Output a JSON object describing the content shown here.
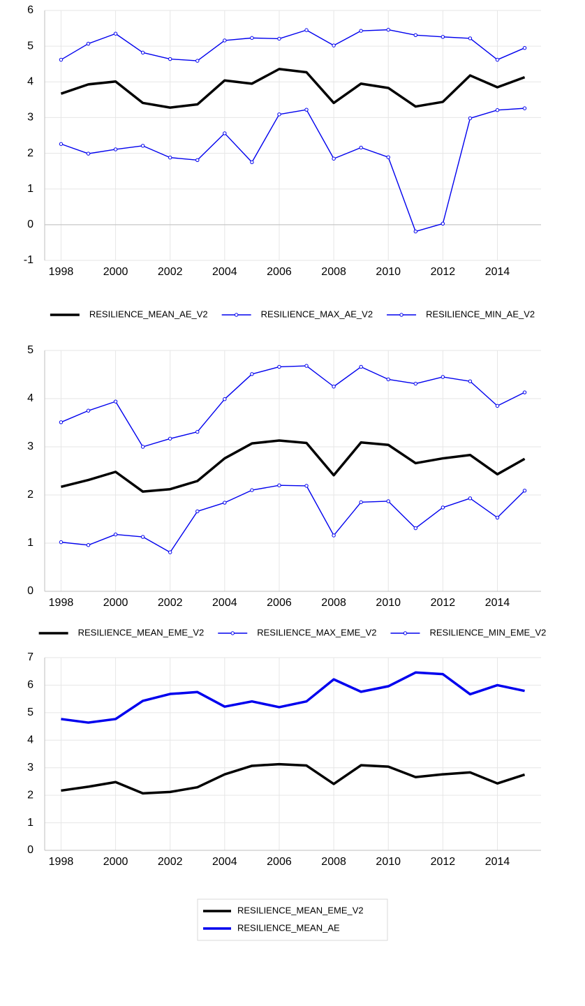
{
  "chart_data": [
    {
      "type": "line",
      "x": [
        1998,
        1999,
        2000,
        2001,
        2002,
        2003,
        2004,
        2005,
        2006,
        2007,
        2008,
        2009,
        2010,
        2011,
        2012,
        2013,
        2014,
        2015
      ],
      "series": [
        {
          "name": "RESILIENCE_MEAN_AE_V2",
          "color": "#000000",
          "style": "thick",
          "values": [
            3.67,
            3.93,
            4.01,
            3.41,
            3.28,
            3.37,
            4.04,
            3.95,
            4.36,
            4.27,
            3.41,
            3.95,
            3.83,
            3.31,
            3.44,
            4.18,
            3.85,
            4.13
          ]
        },
        {
          "name": "RESILIENCE_MAX_AE_V2",
          "color": "#0000ee",
          "style": "markers",
          "values": [
            4.62,
            5.07,
            5.35,
            4.82,
            4.64,
            4.59,
            5.16,
            5.23,
            5.21,
            5.45,
            5.02,
            5.43,
            5.46,
            5.31,
            5.26,
            5.22,
            4.62,
            4.95
          ]
        },
        {
          "name": "RESILIENCE_MIN_AE_V2",
          "color": "#0000ee",
          "style": "markers",
          "values": [
            2.26,
            1.99,
            2.11,
            2.21,
            1.88,
            1.81,
            2.56,
            1.75,
            3.09,
            3.22,
            1.85,
            2.16,
            1.89,
            -0.19,
            0.03,
            2.98,
            3.21,
            3.26
          ]
        }
      ],
      "xlim": [
        1997.4,
        2015.6
      ],
      "xticks": [
        1998,
        2000,
        2002,
        2004,
        2006,
        2008,
        2010,
        2012,
        2014
      ],
      "ylim": [
        -1,
        6
      ],
      "yticks": [
        -1,
        0,
        1,
        2,
        3,
        4,
        5,
        6
      ],
      "grid": true,
      "legend": "bottom-row"
    },
    {
      "type": "line",
      "x": [
        1998,
        1999,
        2000,
        2001,
        2002,
        2003,
        2004,
        2005,
        2006,
        2007,
        2008,
        2009,
        2010,
        2011,
        2012,
        2013,
        2014,
        2015
      ],
      "series": [
        {
          "name": "RESILIENCE_MEAN_EME_V2",
          "color": "#000000",
          "style": "thick",
          "values": [
            2.17,
            2.31,
            2.48,
            2.07,
            2.12,
            2.29,
            2.76,
            3.07,
            3.13,
            3.08,
            2.41,
            3.09,
            3.04,
            2.66,
            2.76,
            2.83,
            2.43,
            2.75
          ]
        },
        {
          "name": "RESILIENCE_MAX_EME_V2",
          "color": "#0000ee",
          "style": "markers",
          "values": [
            3.51,
            3.75,
            3.94,
            3.0,
            3.17,
            3.31,
            3.99,
            4.51,
            4.66,
            4.68,
            4.25,
            4.66,
            4.4,
            4.31,
            4.45,
            4.36,
            3.85,
            4.13
          ]
        },
        {
          "name": "RESILIENCE_MIN_EME_V2",
          "color": "#0000ee",
          "style": "markers",
          "values": [
            1.02,
            0.96,
            1.18,
            1.13,
            0.81,
            1.66,
            1.84,
            2.1,
            2.2,
            2.19,
            1.16,
            1.85,
            1.87,
            1.31,
            1.74,
            1.93,
            1.53,
            2.09
          ]
        }
      ],
      "xlim": [
        1997.4,
        2015.6
      ],
      "xticks": [
        1998,
        2000,
        2002,
        2004,
        2006,
        2008,
        2010,
        2012,
        2014
      ],
      "ylim": [
        0,
        5
      ],
      "yticks": [
        0,
        1,
        2,
        3,
        4,
        5
      ],
      "grid": true,
      "legend": "bottom-row"
    },
    {
      "type": "line",
      "x": [
        1998,
        1999,
        2000,
        2001,
        2002,
        2003,
        2004,
        2005,
        2006,
        2007,
        2008,
        2009,
        2010,
        2011,
        2012,
        2013,
        2014,
        2015
      ],
      "series": [
        {
          "name": "RESILIENCE_MEAN_EME_V2",
          "color": "#000000",
          "style": "thick",
          "values": [
            2.17,
            2.31,
            2.48,
            2.07,
            2.12,
            2.29,
            2.76,
            3.07,
            3.13,
            3.08,
            2.41,
            3.09,
            3.04,
            2.66,
            2.76,
            2.83,
            2.43,
            2.75
          ]
        },
        {
          "name": "RESILIENCE_MEAN_AE",
          "color": "#0000ee",
          "style": "thick",
          "values": [
            4.77,
            4.64,
            4.77,
            5.43,
            5.68,
            5.75,
            5.22,
            5.41,
            5.2,
            5.41,
            6.21,
            5.76,
            5.96,
            6.46,
            6.4,
            5.67,
            6.0,
            5.79
          ]
        }
      ],
      "xlim": [
        1997.4,
        2015.6
      ],
      "xticks": [
        1998,
        2000,
        2002,
        2004,
        2006,
        2008,
        2010,
        2012,
        2014
      ],
      "ylim": [
        0,
        7
      ],
      "yticks": [
        0,
        1,
        2,
        3,
        4,
        5,
        6,
        7
      ],
      "grid": true,
      "legend": "bottom-column"
    }
  ]
}
